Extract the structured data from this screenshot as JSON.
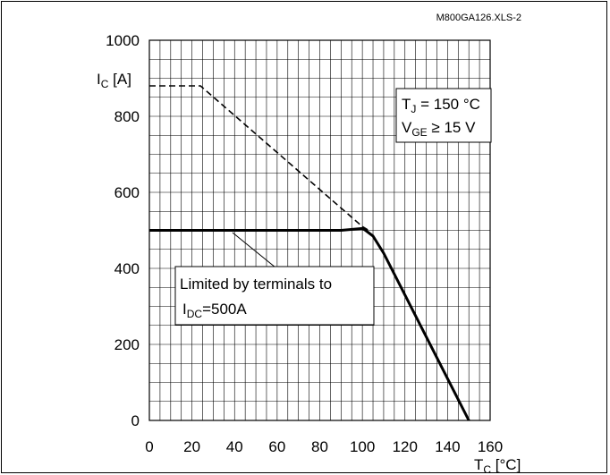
{
  "file_code": "M800GA126.XLS-2",
  "chart_data": {
    "type": "line",
    "ylabel": {
      "main": "I",
      "sub": "C",
      "unit": " [A]"
    },
    "xlabel": {
      "main": "T",
      "sub": "C",
      "unit": " [°C]"
    },
    "xlim": [
      0,
      160
    ],
    "ylim": [
      0,
      1000
    ],
    "xticks": [
      0,
      20,
      40,
      60,
      80,
      100,
      120,
      140,
      160
    ],
    "yticks": [
      0,
      200,
      400,
      600,
      800,
      1000
    ],
    "grid": true,
    "series": [
      {
        "style": "dashed",
        "x": [
          0,
          24,
          100,
          103
        ],
        "y": [
          880,
          880,
          510,
          500
        ]
      },
      {
        "style": "solid",
        "x": [
          0,
          90,
          100,
          101,
          105,
          110,
          150
        ],
        "y": [
          500,
          500,
          505,
          502,
          485,
          440,
          0
        ]
      }
    ],
    "annotations": {
      "conditions": {
        "tj": {
          "main": "T",
          "sub": "J",
          "rest": " = 150 °C"
        },
        "vge": {
          "main": "V",
          "sub": "GE",
          "rest": " ≥ 15 V"
        }
      },
      "limit_note": {
        "line1": "Limited by terminals to",
        "line2": {
          "main": "I",
          "sub": "DC",
          "rest": "=500A"
        }
      }
    }
  }
}
